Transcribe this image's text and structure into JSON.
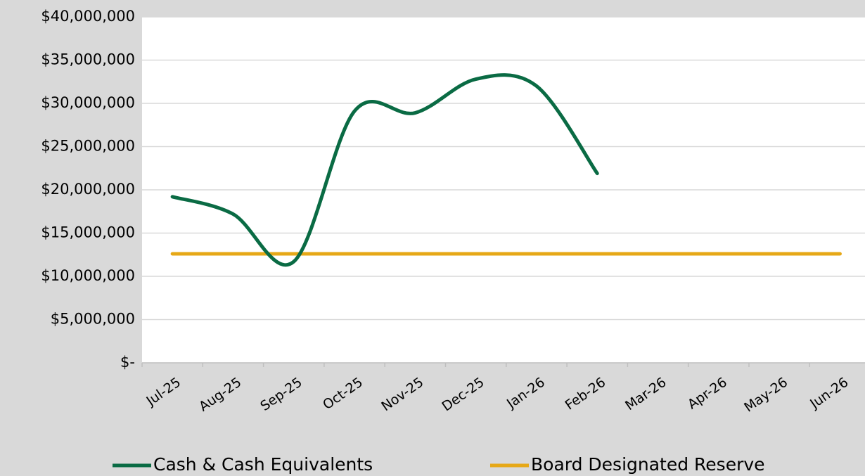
{
  "chart_data": {
    "type": "line",
    "categories": [
      "Jul-25",
      "Aug-25",
      "Sep-25",
      "Oct-25",
      "Nov-25",
      "Dec-25",
      "Jan-26",
      "Feb-26",
      "Mar-26",
      "Apr-26",
      "May-26",
      "Jun-26"
    ],
    "series": [
      {
        "name": "Cash & Cash Equivalents",
        "color": "#0a6b44",
        "values": [
          19200000,
          17200000,
          11700000,
          29100000,
          28900000,
          32800000,
          32000000,
          21900000,
          null,
          null,
          null,
          null
        ]
      },
      {
        "name": "Board Designated Reserve",
        "color": "#e6a817",
        "values": [
          12600000,
          12600000,
          12600000,
          12600000,
          12600000,
          12600000,
          12600000,
          12600000,
          12600000,
          12600000,
          12600000,
          12600000
        ]
      }
    ],
    "ylim": [
      0,
      40000000
    ],
    "yticks": [
      {
        "value": 0,
        "label": "$-"
      },
      {
        "value": 5000000,
        "label": "$5,000,000"
      },
      {
        "value": 10000000,
        "label": "$10,000,000"
      },
      {
        "value": 15000000,
        "label": "$15,000,000"
      },
      {
        "value": 20000000,
        "label": "$20,000,000"
      },
      {
        "value": 25000000,
        "label": "$25,000,000"
      },
      {
        "value": 30000000,
        "label": "$30,000,000"
      },
      {
        "value": 35000000,
        "label": "$35,000,000"
      },
      {
        "value": 40000000,
        "label": "$40,000,000"
      }
    ],
    "grid": true,
    "smooth": true,
    "legend": "bottom"
  }
}
